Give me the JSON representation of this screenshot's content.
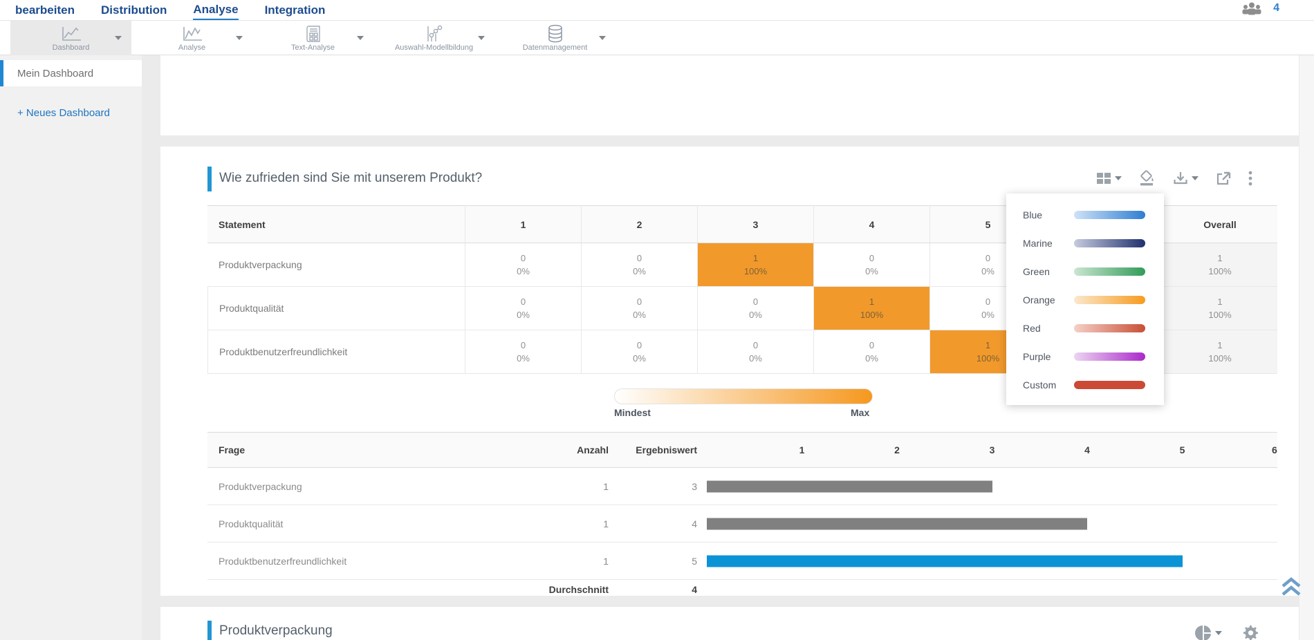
{
  "nav": {
    "items": [
      {
        "label": "bearbeiten"
      },
      {
        "label": "Distribution"
      },
      {
        "label": "Analyse"
      },
      {
        "label": "Integration"
      }
    ],
    "active_item": "Analyse",
    "user_count": "4"
  },
  "ribbon": {
    "selected": "Dashboard",
    "items": [
      {
        "label": "Dashboard",
        "icon": "line-chart-icon"
      },
      {
        "label": "Analyse",
        "icon": "line-chart-icon"
      },
      {
        "label": "Text-Analyse",
        "icon": "report-icon"
      },
      {
        "label": "Auswahl-Modellbildung",
        "icon": "scatter-model-icon"
      },
      {
        "label": "Datenmanagement",
        "icon": "database-icon"
      }
    ]
  },
  "sidebar": {
    "items": [
      {
        "label": "Mein Dashboard",
        "active": true
      }
    ],
    "new_dashboard": "+ Neues Dashboard"
  },
  "question_widget": {
    "title": "Wie zufrieden sind Sie mit unserem Produkt?",
    "toolbar_icons": [
      "layout-grid-icon",
      "fill-color-icon",
      "download-icon",
      "share-icon",
      "more-menu-icon"
    ],
    "statement_table": {
      "headers": [
        "Statement",
        "1",
        "2",
        "3",
        "4",
        "5",
        "",
        "Overall"
      ],
      "rows": [
        {
          "label": "Produktverpackung",
          "cells": [
            {
              "count": "0",
              "pct": "0%",
              "highlight": false
            },
            {
              "count": "0",
              "pct": "0%",
              "highlight": false
            },
            {
              "count": "1",
              "pct": "100%",
              "highlight": true
            },
            {
              "count": "0",
              "pct": "0%",
              "highlight": false
            },
            {
              "count": "0",
              "pct": "0%",
              "highlight": false
            },
            {
              "count": "",
              "pct": "",
              "highlight": false
            }
          ],
          "overall": {
            "count": "1",
            "pct": "100%"
          }
        },
        {
          "label": "Produktqualität",
          "cells": [
            {
              "count": "0",
              "pct": "0%",
              "highlight": false
            },
            {
              "count": "0",
              "pct": "0%",
              "highlight": false
            },
            {
              "count": "0",
              "pct": "0%",
              "highlight": false
            },
            {
              "count": "1",
              "pct": "100%",
              "highlight": true
            },
            {
              "count": "0",
              "pct": "0%",
              "highlight": false
            },
            {
              "count": "",
              "pct": "",
              "highlight": false
            }
          ],
          "overall": {
            "count": "1",
            "pct": "100%"
          }
        },
        {
          "label": "Produktbenutzerfreundlichkeit",
          "cells": [
            {
              "count": "0",
              "pct": "0%",
              "highlight": false
            },
            {
              "count": "0",
              "pct": "0%",
              "highlight": false
            },
            {
              "count": "0",
              "pct": "0%",
              "highlight": false
            },
            {
              "count": "0",
              "pct": "0%",
              "highlight": false
            },
            {
              "count": "1",
              "pct": "100%",
              "highlight": true
            },
            {
              "count": "",
              "pct": "",
              "highlight": false
            }
          ],
          "overall": {
            "count": "1",
            "pct": "100%"
          }
        }
      ]
    },
    "color_menu": {
      "items": [
        {
          "label": "Blue",
          "from": "#cfe2f8",
          "to": "#2e7ed2"
        },
        {
          "label": "Marine",
          "from": "#c6cbde",
          "to": "#20306e"
        },
        {
          "label": "Green",
          "from": "#c9e6d2",
          "to": "#339b58"
        },
        {
          "label": "Orange",
          "from": "#fbe8cd",
          "to": "#f79b1e"
        },
        {
          "label": "Red",
          "from": "#f5d0c8",
          "to": "#c94f36"
        },
        {
          "label": "Purple",
          "from": "#ecd5f1",
          "to": "#aa2acb"
        },
        {
          "label": "Custom",
          "from": "#cc4936",
          "to": "#cc4936"
        }
      ]
    },
    "legend": {
      "min": "Mindest",
      "max": "Max"
    },
    "score_table": {
      "headers": {
        "question": "Frage",
        "count": "Anzahl",
        "score": "Ergebniswert"
      },
      "scale": [
        "1",
        "2",
        "3",
        "4",
        "5",
        "6"
      ],
      "scale_max": 6,
      "rows": [
        {
          "label": "Produktverpackung",
          "count": "1",
          "score": "3",
          "value": 3,
          "bar_color": "#808080"
        },
        {
          "label": "Produktqualität",
          "count": "1",
          "score": "4",
          "value": 4,
          "bar_color": "#808080"
        },
        {
          "label": "Produktbenutzerfreundlichkeit",
          "count": "1",
          "score": "5",
          "value": 5,
          "bar_color": "#0c93d6"
        }
      ],
      "footer": {
        "label": "Durchschnitt",
        "value": "4"
      }
    }
  },
  "next_widget": {
    "title": "Produktverpackung",
    "toolbar_icons": [
      "pie-chart-icon",
      "settings-icon"
    ]
  },
  "colors": {
    "accent_blue": "#2196d3",
    "highlight_orange": "#f2992b",
    "bar_gray": "#808080",
    "bar_blue": "#0c93d6",
    "nav_blue": "#1c4c8f",
    "legend_gradient_to": "#f6981f"
  }
}
